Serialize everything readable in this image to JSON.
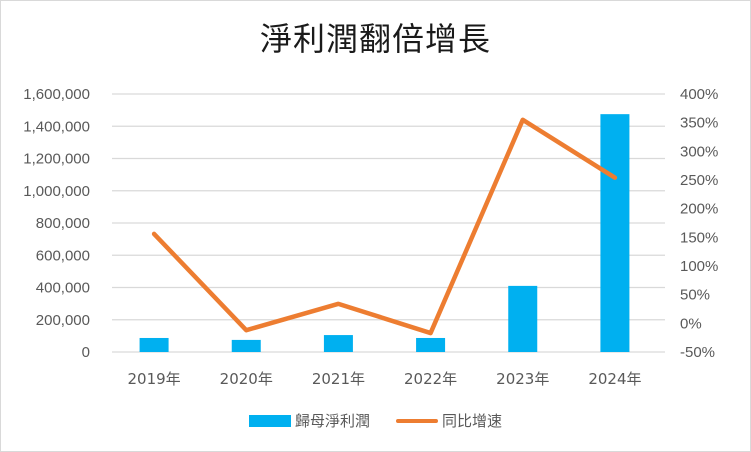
{
  "chart_data": {
    "type": "bar+line",
    "title": "淨利潤翻倍增長",
    "categories": [
      "2019年",
      "2020年",
      "2021年",
      "2022年",
      "2023年",
      "2024年"
    ],
    "series": [
      {
        "name": "歸母淨利潤",
        "type": "bar",
        "axis": "left",
        "color": "#00B0F0",
        "values": [
          87000,
          75000,
          105000,
          87000,
          410000,
          1475000
        ]
      },
      {
        "name": "同比增速",
        "type": "line",
        "axis": "right",
        "color": "#ED7D31",
        "values": [
          1.56,
          -0.12,
          0.34,
          -0.17,
          3.55,
          2.54
        ]
      }
    ],
    "left_axis": {
      "ylim": [
        0,
        1600000
      ],
      "ticks": [
        "0",
        "200,000",
        "400,000",
        "600,000",
        "800,000",
        "1,000,000",
        "1,200,000",
        "1,400,000",
        "1,600,000"
      ]
    },
    "right_axis": {
      "ylim": [
        -0.5,
        4.0
      ],
      "ticks": [
        "-50%",
        "0%",
        "50%",
        "100%",
        "150%",
        "200%",
        "250%",
        "300%",
        "350%",
        "400%"
      ]
    },
    "xlabel": "",
    "ylabel": "",
    "grid": true,
    "legend_position": "bottom"
  },
  "legend": {
    "bar_label": "歸母淨利潤",
    "line_label": "同比增速"
  }
}
